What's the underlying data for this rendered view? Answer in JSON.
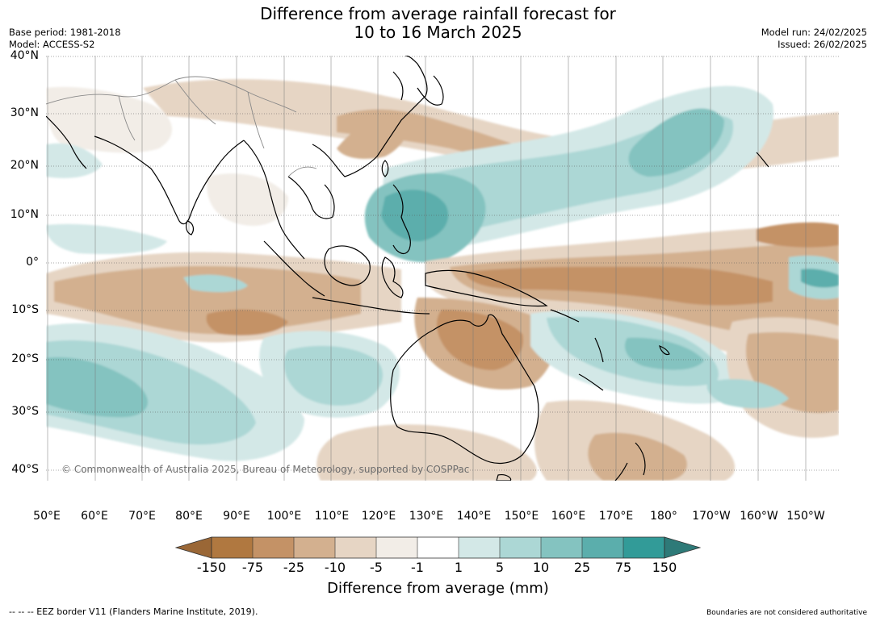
{
  "title": {
    "line1": "Difference from average rainfall forecast for",
    "line2": "10 to 16 March 2025"
  },
  "meta_left": {
    "base_period": "Base period: 1981-2018",
    "model": "Model: ACCESS-S2"
  },
  "meta_right": {
    "model_run": "Model run: 24/02/2025",
    "issued": "Issued: 26/02/2025"
  },
  "map": {
    "credit": "© Commonwealth of Australia 2025, Bureau of Meteorology, supported by COSPPac",
    "lat_labels": [
      "40°N",
      "30°N",
      "20°N",
      "10°N",
      "0°",
      "10°S",
      "20°S",
      "30°S",
      "40°S"
    ],
    "lon_labels": [
      "50°E",
      "60°E",
      "70°E",
      "80°E",
      "90°E",
      "100°E",
      "110°E",
      "120°E",
      "130°E",
      "140°E",
      "150°E",
      "160°E",
      "170°E",
      "180°",
      "170°W",
      "160°W",
      "150°W"
    ],
    "colors": {
      "very_dry": "#9a6736",
      "dry_150": "#b07840",
      "dry_75": "#c49266",
      "dry_25": "#d3b08f",
      "dry_10": "#e6d5c4",
      "dry_5": "#f2ede7",
      "near_avg": "#ffffff",
      "wet_5": "#d3e8e7",
      "wet_10": "#acd7d5",
      "wet_25": "#84c3c0",
      "wet_75": "#5baeac",
      "wet_150": "#329b98",
      "very_wet": "#2e7a78",
      "land_outline": "#000000",
      "border": "#888888",
      "grid": "#555555"
    }
  },
  "colorbar": {
    "ticks": [
      "-150",
      "-75",
      "-25",
      "-10",
      "-5",
      "-1",
      "1",
      "5",
      "10",
      "25",
      "75",
      "150"
    ],
    "title": "Difference from average (mm)"
  },
  "footer": {
    "left": "--  --  -- EEZ border V11 (Flanders Marine Institute, 2019).",
    "right": "Boundaries are not considered authoritative"
  }
}
